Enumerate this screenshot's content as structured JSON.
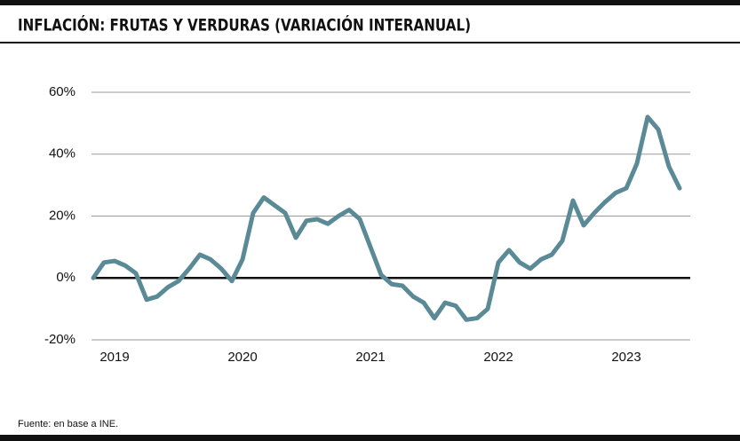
{
  "chart_data": {
    "type": "line",
    "title": "INFLACIÓN: FRUTAS Y VERDURAS (VARIACIÓN INTERANUAL)",
    "source": "Fuente: en base a INE.",
    "categories": [
      null,
      null,
      "2019",
      null,
      null,
      null,
      null,
      null,
      null,
      null,
      null,
      null,
      null,
      null,
      "2020",
      null,
      null,
      null,
      null,
      null,
      null,
      null,
      null,
      null,
      null,
      null,
      "2021",
      null,
      null,
      null,
      null,
      null,
      null,
      null,
      null,
      null,
      null,
      null,
      "2022",
      null,
      null,
      null,
      null,
      null,
      null,
      null,
      null,
      null,
      null,
      null,
      "2023",
      null,
      null,
      null,
      null,
      null
    ],
    "series": [
      {
        "name": "Frutas y verduras",
        "color": "#5a8a96",
        "values": [
          0,
          5,
          5.5,
          4,
          1.5,
          -7,
          -6,
          -3,
          -1,
          3,
          7.5,
          6,
          3,
          -1,
          6,
          21,
          26,
          23.5,
          21,
          13,
          18.5,
          19,
          17.5,
          20,
          22,
          19,
          10,
          1,
          -2,
          -2.5,
          -6,
          -8,
          -13,
          -8,
          -9,
          -13.5,
          -13,
          -10,
          5,
          9,
          5,
          3,
          6,
          7.5,
          12,
          25,
          17,
          21,
          24.5,
          27.5,
          29,
          37,
          52,
          48,
          36,
          29
        ]
      }
    ],
    "ylim": [
      -20,
      60
    ],
    "yticks": [
      {
        "value": -20,
        "label": "-20%"
      },
      {
        "value": 0,
        "label": "0%"
      },
      {
        "value": 20,
        "label": "20%"
      },
      {
        "value": 40,
        "label": "40%"
      },
      {
        "value": 60,
        "label": "60%"
      }
    ],
    "grid": true
  }
}
